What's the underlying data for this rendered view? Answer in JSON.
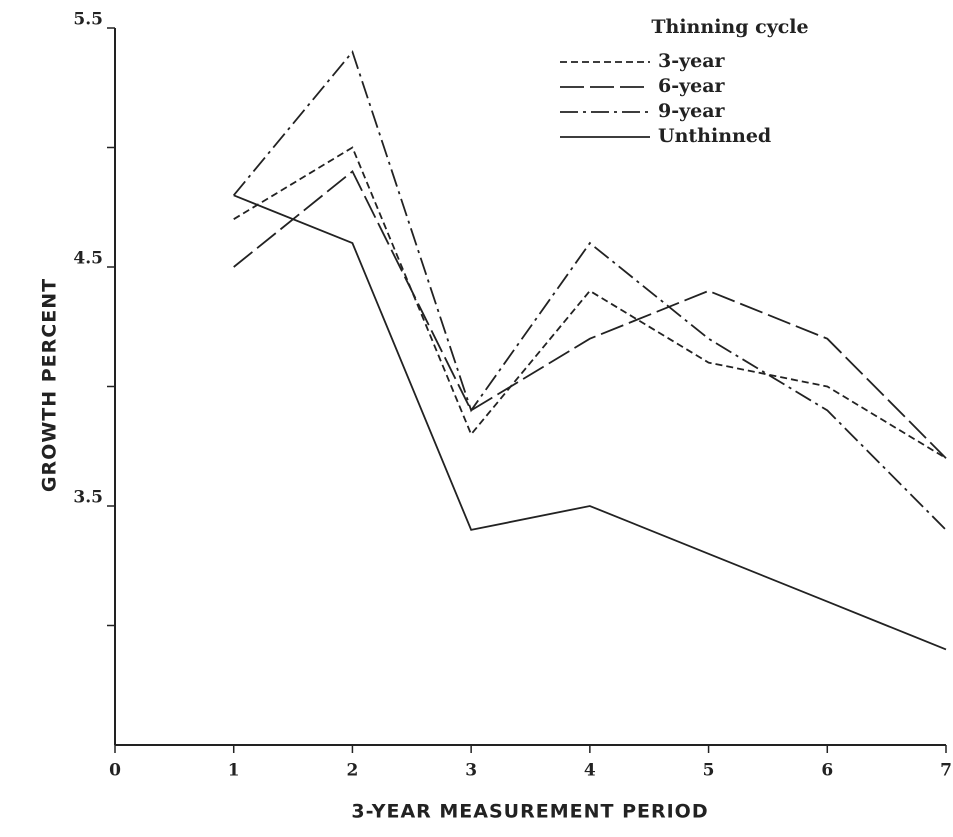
{
  "chart_data": {
    "type": "line",
    "xlabel": "3-YEAR MEASUREMENT PERIOD",
    "ylabel": "GROWTH PERCENT",
    "legend_title": "Thinning cycle",
    "legend_position": "upper right",
    "x": [
      1,
      2,
      3,
      4,
      5,
      6,
      7
    ],
    "xlim": [
      0,
      7
    ],
    "xticks": [
      0,
      1,
      2,
      3,
      4,
      5,
      6,
      7
    ],
    "ylim": [
      2.5,
      5.5
    ],
    "yticks": [
      3.5,
      4.5,
      5.5
    ],
    "yminor_ticks": [
      3,
      4,
      5
    ],
    "series": [
      {
        "name": "3-year",
        "color": "#222222",
        "line_style": "short-dash",
        "values": [
          4.7,
          5.0,
          3.8,
          4.4,
          4.1,
          4.0,
          3.7
        ]
      },
      {
        "name": "6-year",
        "color": "#222222",
        "line_style": "long-dash",
        "values": [
          4.5,
          4.9,
          3.9,
          4.2,
          4.4,
          4.2,
          3.7
        ]
      },
      {
        "name": "9-year",
        "color": "#222222",
        "line_style": "dash-dot",
        "values": [
          4.8,
          5.4,
          3.9,
          4.6,
          4.2,
          3.9,
          3.4
        ]
      },
      {
        "name": "Unthinned",
        "color": "#222222",
        "line_style": "solid",
        "values": [
          4.8,
          4.6,
          3.4,
          3.5,
          3.3,
          3.1,
          2.9
        ]
      }
    ]
  }
}
